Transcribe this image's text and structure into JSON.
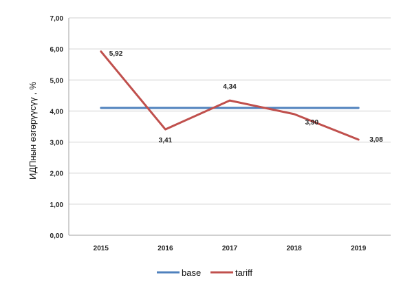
{
  "chart_data": {
    "type": "line",
    "categories": [
      "2015",
      "2016",
      "2017",
      "2018",
      "2019"
    ],
    "series": [
      {
        "name": "base",
        "values": [
          4.1,
          4.1,
          4.1,
          4.1,
          4.1
        ],
        "color": "#4F81BD",
        "labels": false
      },
      {
        "name": "tariff",
        "values": [
          5.92,
          3.41,
          4.34,
          3.9,
          3.08
        ],
        "color": "#C0504D",
        "labels": true
      }
    ],
    "data_labels": [
      "5,92",
      "3,41",
      "4,34",
      "3,90",
      "3,08"
    ],
    "y_ticks": [
      "0,00",
      "1,00",
      "2,00",
      "3,00",
      "4,00",
      "5,00",
      "6,00",
      "7,00"
    ],
    "ylabel": "ИДПнын өзгөрүүсүү , %",
    "xlabel": "",
    "title": "",
    "ylim": [
      0,
      7
    ],
    "grid": true,
    "legend_position": "bottom"
  }
}
